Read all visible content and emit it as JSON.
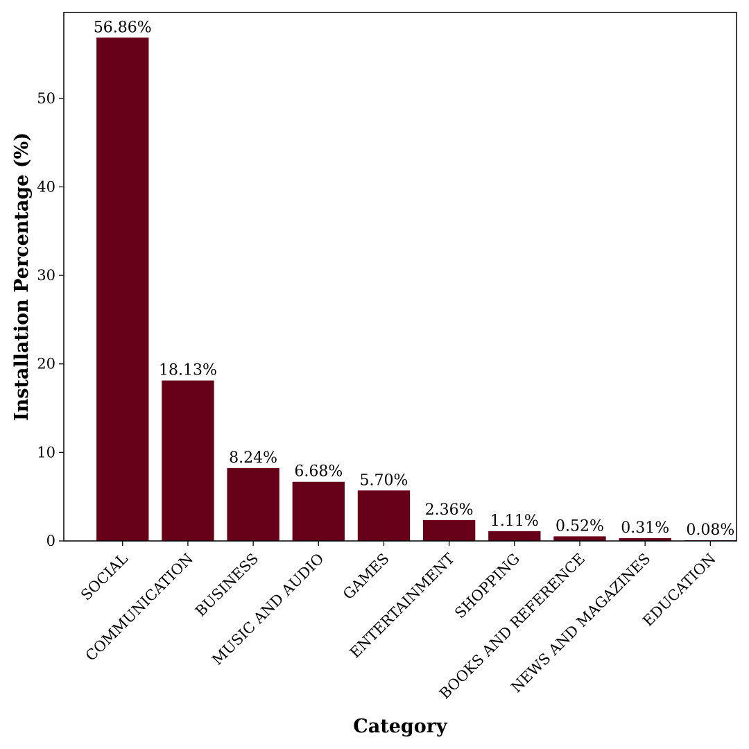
{
  "chart_data": {
    "type": "bar",
    "title": "",
    "xlabel": "Category",
    "ylabel": "Installation Percentage (%)",
    "categories": [
      "SOCIAL",
      "COMMUNICATION",
      "BUSINESS",
      "MUSIC AND AUDIO",
      "GAMES",
      "ENTERTAINMENT",
      "SHOPPING",
      "BOOKS AND REFERENCE",
      "NEWS AND MAGAZINES",
      "EDUCATION"
    ],
    "values": [
      56.86,
      18.13,
      8.24,
      6.68,
      5.7,
      2.36,
      1.11,
      0.52,
      0.31,
      0.08
    ],
    "data_labels": [
      "56.86%",
      "18.13%",
      "8.24%",
      "6.68%",
      "5.70%",
      "2.36%",
      "1.11%",
      "0.52%",
      "0.31%",
      "0.08%"
    ],
    "ylim": [
      0,
      59.7
    ],
    "yticks": [
      0,
      10,
      20,
      30,
      40,
      50
    ],
    "ytick_labels": [
      "0",
      "10",
      "20",
      "30",
      "40",
      "50"
    ],
    "bar_color": "#670019",
    "grid": false,
    "legend": "none"
  }
}
